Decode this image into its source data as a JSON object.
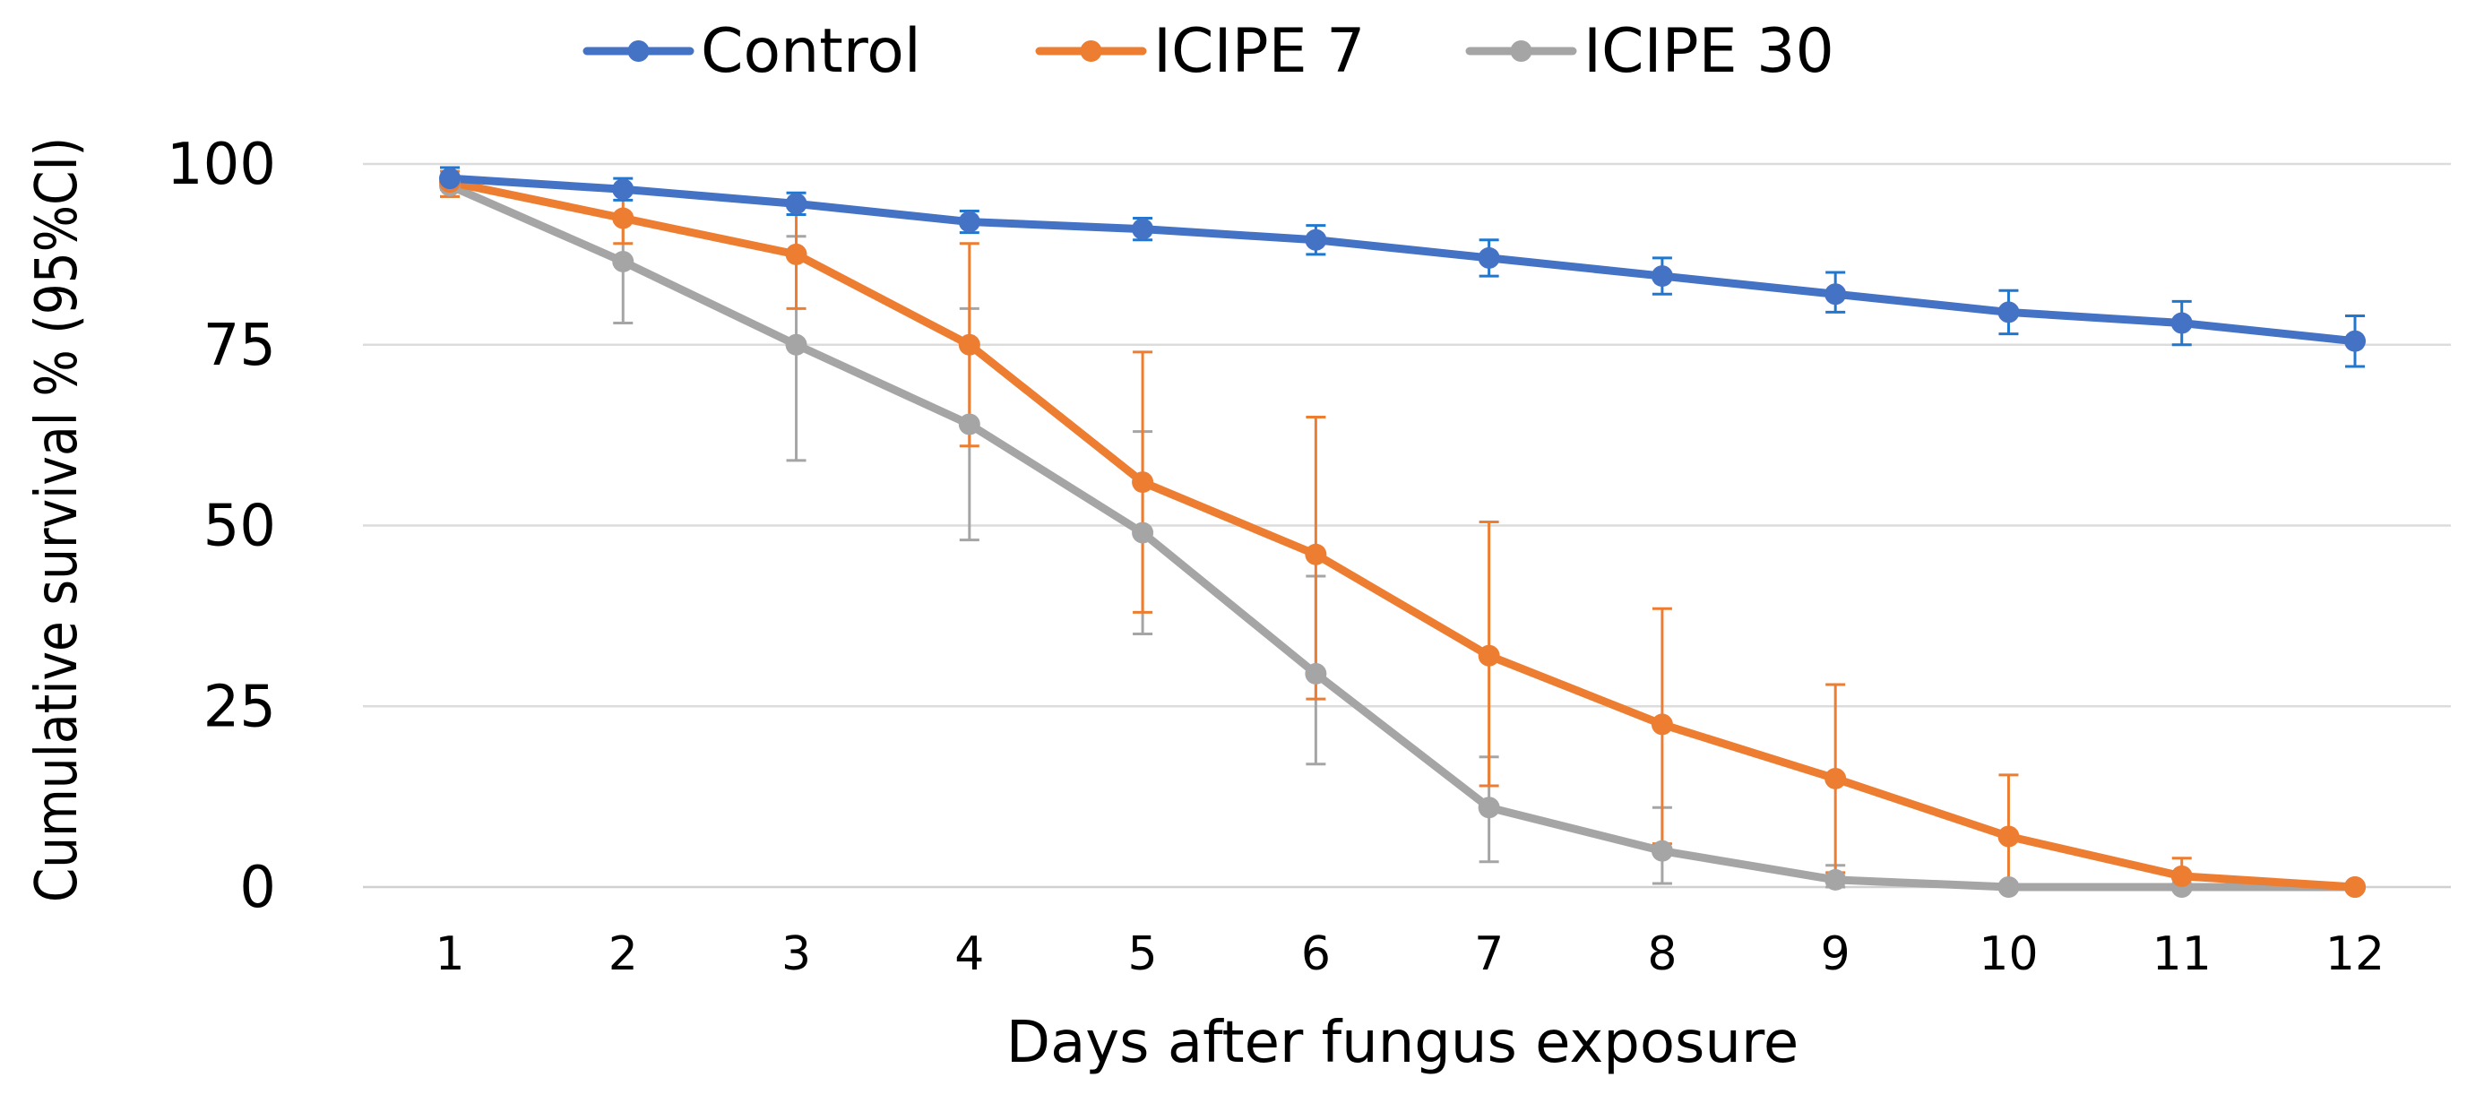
{
  "chart_data": {
    "type": "line",
    "title": "",
    "xlabel": "Days after fungus exposure",
    "ylabel": "Cumulative survival % (95%CI)",
    "x": [
      1,
      2,
      3,
      4,
      5,
      6,
      7,
      8,
      9,
      10,
      11,
      12
    ],
    "xticks": [
      "1",
      "2",
      "3",
      "4",
      "5",
      "6",
      "7",
      "8",
      "9",
      "10",
      "11",
      "12"
    ],
    "yticks": [
      "0",
      "25",
      "50",
      "75",
      "100"
    ],
    "ylim": [
      0,
      100
    ],
    "grid": true,
    "legend_position": "top",
    "series": [
      {
        "name": "Control",
        "color": "#4472C4",
        "errorbar_color": "#1F77D0",
        "values": [
          98,
          96.5,
          94.5,
          92,
          91,
          89.5,
          87,
          84.5,
          82,
          79.5,
          78,
          75.5
        ],
        "err_low": [
          96.5,
          95,
          93,
          90.5,
          89.5,
          87.5,
          84.5,
          82,
          79.5,
          76.5,
          75,
          72
        ],
        "err_high": [
          99.5,
          98,
          96,
          93.5,
          92.5,
          91.5,
          89.5,
          87,
          85,
          82.5,
          81,
          79
        ]
      },
      {
        "name": "ICIPE 7",
        "color": "#ED7D31",
        "errorbar_color": "#ED7D31",
        "values": [
          97.5,
          92.5,
          87.5,
          75,
          56,
          46,
          32,
          22.5,
          15,
          7,
          1.5,
          0
        ],
        "err_low": [
          95.5,
          89,
          80,
          61,
          38,
          26,
          14,
          6,
          2,
          0,
          0,
          0
        ],
        "err_high": [
          99,
          96,
          94,
          89,
          74,
          65,
          50.5,
          38.5,
          28,
          15.5,
          4,
          0
        ]
      },
      {
        "name": "ICIPE 30",
        "color": "#A5A5A5",
        "errorbar_color": "#A5A5A5",
        "values": [
          97,
          86.5,
          75,
          64,
          49,
          29.5,
          11,
          5,
          1,
          0,
          0,
          0
        ],
        "err_low": [
          95.5,
          78,
          59,
          48,
          35,
          17,
          3.5,
          0.5,
          0,
          0,
          0,
          0
        ],
        "err_high": [
          98.5,
          93,
          90,
          80,
          63,
          43,
          18,
          11,
          3,
          0,
          0,
          0
        ]
      }
    ]
  }
}
